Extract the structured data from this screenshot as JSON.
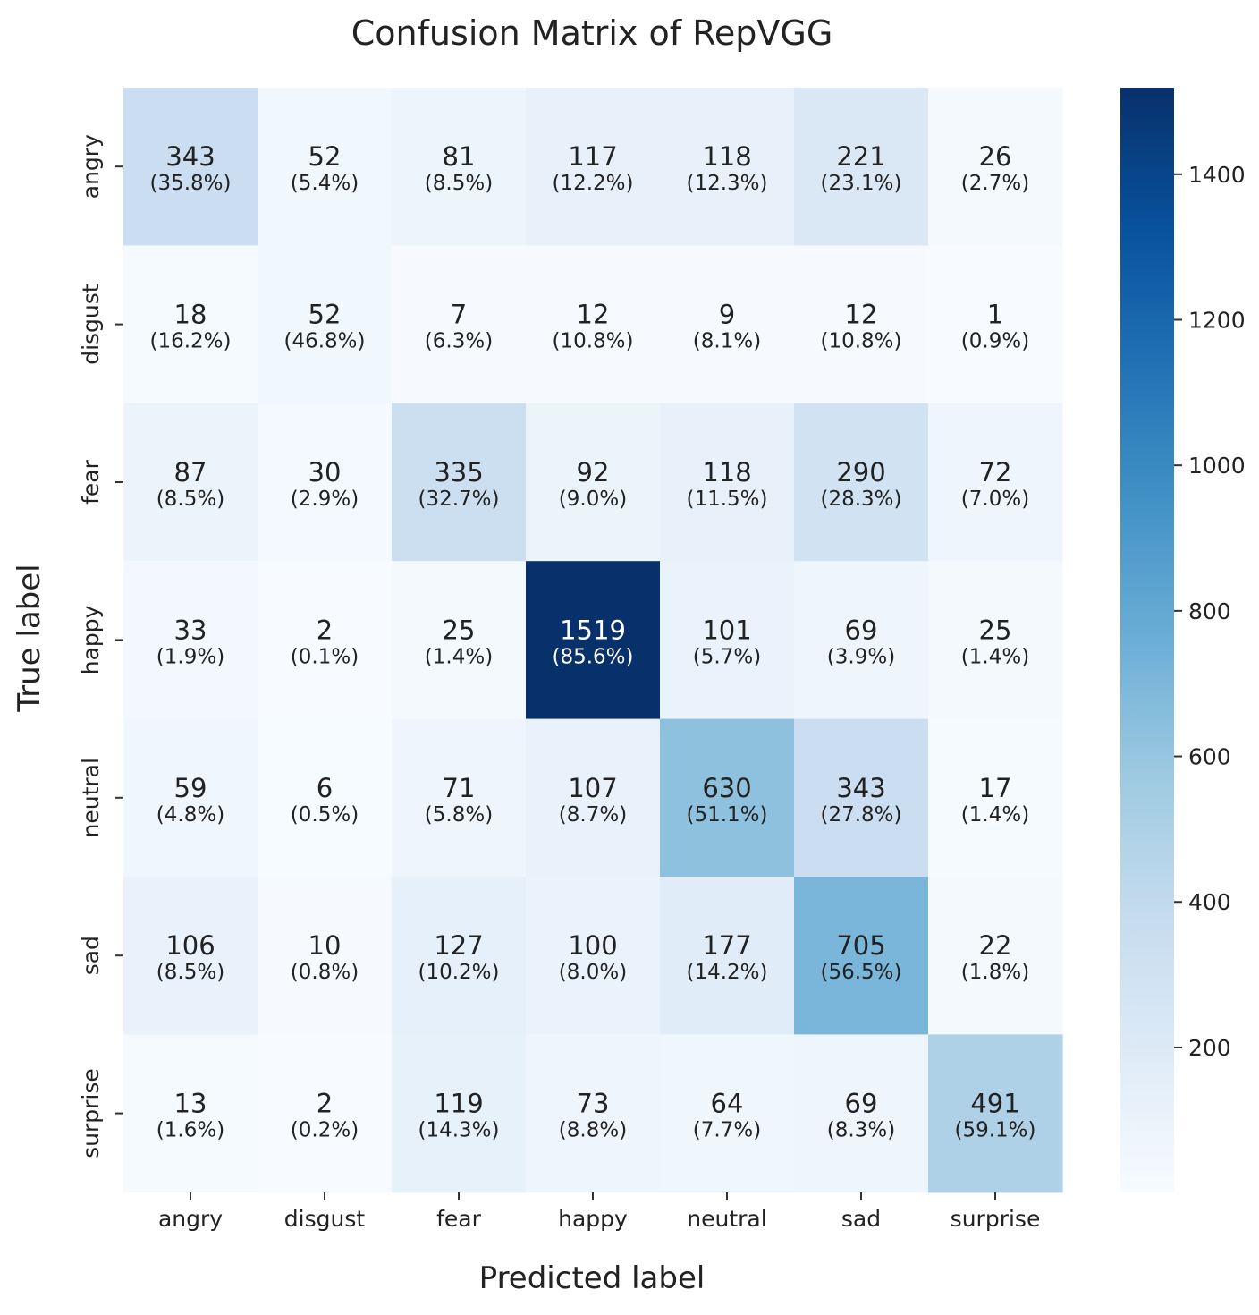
{
  "chart_data": {
    "type": "heatmap",
    "title": "Confusion Matrix of RepVGG",
    "xlabel": "Predicted label",
    "ylabel": "True label",
    "x_categories": [
      "angry",
      "disgust",
      "fear",
      "happy",
      "neutral",
      "sad",
      "surprise"
    ],
    "y_categories": [
      "angry",
      "disgust",
      "fear",
      "happy",
      "neutral",
      "sad",
      "surprise"
    ],
    "counts": [
      [
        343,
        52,
        81,
        117,
        118,
        221,
        26
      ],
      [
        18,
        52,
        7,
        12,
        9,
        12,
        1
      ],
      [
        87,
        30,
        335,
        92,
        118,
        290,
        72
      ],
      [
        33,
        2,
        25,
        1519,
        101,
        69,
        25
      ],
      [
        59,
        6,
        71,
        107,
        630,
        343,
        17
      ],
      [
        106,
        10,
        127,
        100,
        177,
        705,
        22
      ],
      [
        13,
        2,
        119,
        73,
        64,
        69,
        491
      ]
    ],
    "percents": [
      [
        "(35.8%)",
        "(5.4%)",
        "(8.5%)",
        "(12.2%)",
        "(12.3%)",
        "(23.1%)",
        "(2.7%)"
      ],
      [
        "(16.2%)",
        "(46.8%)",
        "(6.3%)",
        "(10.8%)",
        "(8.1%)",
        "(10.8%)",
        "(0.9%)"
      ],
      [
        "(8.5%)",
        "(2.9%)",
        "(32.7%)",
        "(9.0%)",
        "(11.5%)",
        "(28.3%)",
        "(7.0%)"
      ],
      [
        "(1.9%)",
        "(0.1%)",
        "(1.4%)",
        "(85.6%)",
        "(5.7%)",
        "(3.9%)",
        "(1.4%)"
      ],
      [
        "(4.8%)",
        "(0.5%)",
        "(5.8%)",
        "(8.7%)",
        "(51.1%)",
        "(27.8%)",
        "(1.4%)"
      ],
      [
        "(8.5%)",
        "(0.8%)",
        "(10.2%)",
        "(8.0%)",
        "(14.2%)",
        "(56.5%)",
        "(1.8%)"
      ],
      [
        "(1.6%)",
        "(0.2%)",
        "(14.3%)",
        "(8.8%)",
        "(7.7%)",
        "(8.3%)",
        "(59.1%)"
      ]
    ],
    "colorbar": {
      "min": 1,
      "max": 1519,
      "ticks": [
        200,
        400,
        600,
        800,
        1000,
        1200,
        1400
      ],
      "colormap": "Blues"
    }
  }
}
